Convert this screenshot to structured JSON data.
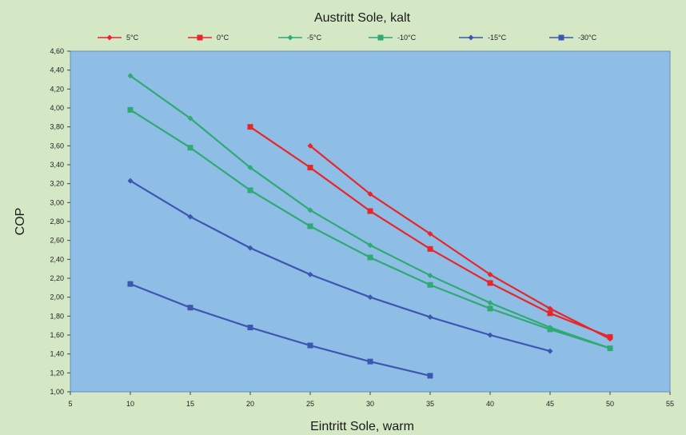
{
  "chart_data": {
    "type": "line",
    "title": "Austritt Sole, kalt",
    "xlabel": "Eintritt Sole, warm",
    "ylabel": "COP",
    "xlim": [
      5,
      55
    ],
    "ylim": [
      1.0,
      4.6
    ],
    "x_ticks": [
      "5",
      "10",
      "15",
      "20",
      "25",
      "30",
      "35",
      "40",
      "45",
      "50",
      "55"
    ],
    "y_ticks": [
      "1,00",
      "1,20",
      "1,40",
      "1,60",
      "1,80",
      "2,00",
      "2,20",
      "2,40",
      "2,60",
      "2,80",
      "3,00",
      "3,20",
      "3,40",
      "3,60",
      "3,80",
      "4,00",
      "4,20",
      "4,40",
      "4,60"
    ],
    "legend_position": "top",
    "plot_background": "#8ebde6",
    "series": [
      {
        "name": "5°C",
        "color": "#e8262a",
        "marker": "diamond",
        "x": [
          25,
          30,
          35,
          40,
          45,
          50
        ],
        "y": [
          3.6,
          3.09,
          2.67,
          2.24,
          1.88,
          1.56
        ]
      },
      {
        "name": "0°C",
        "color": "#e8262a",
        "marker": "square",
        "x": [
          20,
          25,
          30,
          35,
          40,
          45,
          50
        ],
        "y": [
          3.8,
          3.37,
          2.91,
          2.51,
          2.15,
          1.83,
          1.58
        ]
      },
      {
        "name": "-5°C",
        "color": "#2faa72",
        "marker": "diamond",
        "x": [
          10,
          15,
          20,
          25,
          30,
          35,
          40,
          45,
          50
        ],
        "y": [
          4.34,
          3.89,
          3.37,
          2.92,
          2.55,
          2.23,
          1.94,
          1.68,
          1.46
        ]
      },
      {
        "name": "-10°C",
        "color": "#2faa72",
        "marker": "square",
        "x": [
          10,
          15,
          20,
          25,
          30,
          35,
          40,
          45,
          50
        ],
        "y": [
          3.98,
          3.58,
          3.13,
          2.75,
          2.42,
          2.13,
          1.88,
          1.66,
          1.46
        ]
      },
      {
        "name": "-15°C",
        "color": "#3d56b0",
        "marker": "diamond",
        "x": [
          10,
          15,
          20,
          25,
          30,
          35,
          40,
          45
        ],
        "y": [
          3.23,
          2.85,
          2.52,
          2.24,
          2.0,
          1.79,
          1.6,
          1.43
        ]
      },
      {
        "name": "-30°C",
        "color": "#3d56b0",
        "marker": "square",
        "x": [
          10,
          15,
          20,
          25,
          30,
          35
        ],
        "y": [
          2.14,
          1.89,
          1.68,
          1.49,
          1.32,
          1.17
        ]
      }
    ]
  }
}
